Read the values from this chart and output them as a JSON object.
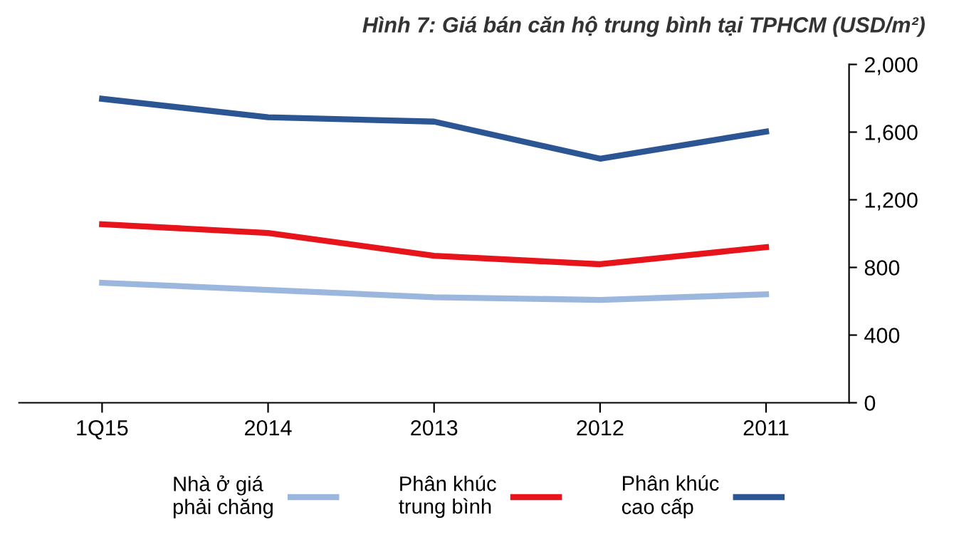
{
  "chart_data": {
    "type": "line",
    "title": "Hình 7: Giá bán căn hộ trung bình tại TPHCM (USD/m²)",
    "categories": [
      "1Q15",
      "2014",
      "2013",
      "2012",
      "2011"
    ],
    "series": [
      {
        "name": "Nhà ở giá\nphải chăng",
        "color": "#9bb7de",
        "values": [
          709,
          667,
          624,
          608,
          641
        ]
      },
      {
        "name": "Phân khúc\ntrung bình",
        "color": "#e8141b",
        "values": [
          1055,
          1004,
          869,
          819,
          920
        ]
      },
      {
        "name": "Phân khúc\ncao cấp",
        "color": "#2c5593",
        "values": [
          1797,
          1688,
          1662,
          1443,
          1603
        ]
      }
    ],
    "ylim": [
      0,
      2000
    ],
    "yticks": [
      {
        "value": 0,
        "label": "0"
      },
      {
        "value": 400,
        "label": "400"
      },
      {
        "value": 800,
        "label": "800"
      },
      {
        "value": 1200,
        "label": "1,200"
      },
      {
        "value": 1600,
        "label": "1,600"
      },
      {
        "value": 2000,
        "label": "2,000"
      }
    ],
    "grid": false,
    "legend": "bottom",
    "marker": "none",
    "line_style": "solid"
  }
}
